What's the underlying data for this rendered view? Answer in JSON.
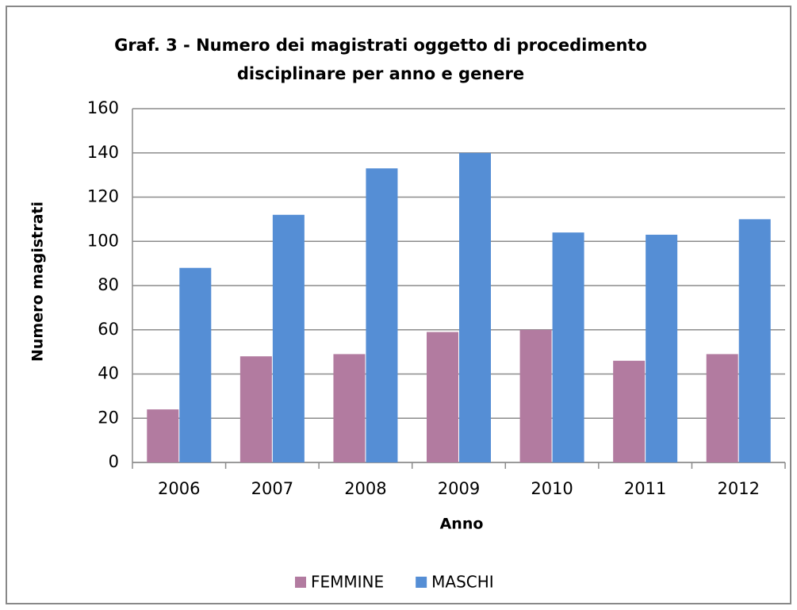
{
  "chart_data": {
    "type": "bar",
    "title": [
      "Graf. 3 - Numero dei magistrati oggetto di procedimento",
      "disciplinare per anno e genere"
    ],
    "x_label": "Anno",
    "y_label": "Numero magistrati",
    "categories": [
      "2006",
      "2007",
      "2008",
      "2009",
      "2010",
      "2011",
      "2012"
    ],
    "series": [
      {
        "name": "FEMMINE",
        "color": "#b27ba0",
        "values": [
          24,
          48,
          49,
          59,
          60,
          46,
          49
        ]
      },
      {
        "name": "MASCHI",
        "color": "#558ed5",
        "values": [
          88,
          112,
          133,
          140,
          104,
          103,
          110
        ]
      }
    ],
    "ylim": [
      0,
      160
    ],
    "yticks": [
      0,
      20,
      40,
      60,
      80,
      100,
      120,
      140,
      160
    ],
    "grid": true,
    "legend": "bottom"
  }
}
